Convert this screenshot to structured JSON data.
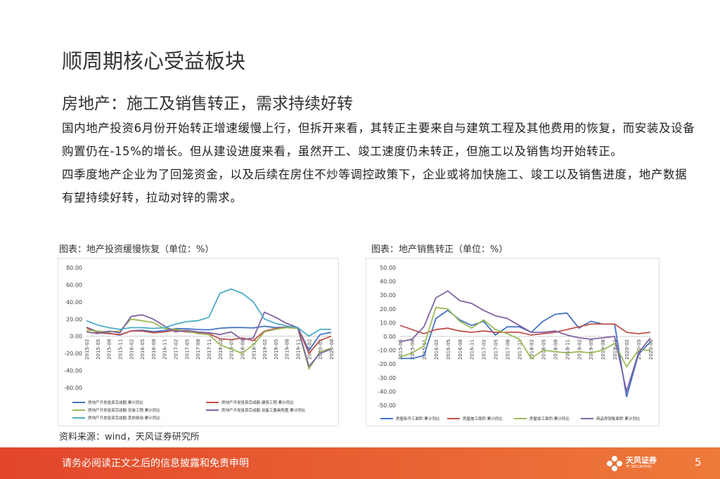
{
  "title": "顺周期核心受益板块",
  "subtitle": "房地产：施工及销售转正，需求持续好转",
  "paragraphs": [
    "国内地产投资6月份开始转正增速缓慢上行，但拆开来看，其转正主要来自与建筑工程及其他费用的恢复，而安装及设备购置仍在-15%的增长。但从建设进度来看，虽然开工、竣工速度仍未转正，但施工以及销售均开始转正。",
    "四季度地产企业为了回笼资金，以及后续在房住不炒等调控政策下，企业或将加快施工、竣工以及销售进度，地产数据有望持续好转，拉动对锌的需求。"
  ],
  "source": "资料来源：wind，天风证券研究所",
  "footer": "请务必阅读正文之后的信息披露和免责申明",
  "logo": {
    "name": "天风证券",
    "sub": "TF SECURITIES"
  },
  "page_number": "5",
  "chart_data": [
    {
      "type": "line",
      "title": "图表：地产投资缓慢恢复（单位：%）",
      "categories": [
        "2015-02",
        "2015-05",
        "2015-08",
        "2015-11",
        "2016-02",
        "2016-05",
        "2016-08",
        "2016-11",
        "2017-02",
        "2017-05",
        "2017-08",
        "2017-11",
        "2018-02",
        "2018-05",
        "2018-08",
        "2018-11",
        "2019-02",
        "2019-05",
        "2019-08",
        "2019-11",
        "2020-02",
        "2020-05",
        "2020-08"
      ],
      "ylim": [
        -60,
        80
      ],
      "yticks": [
        {
          "value": 80,
          "label": "80.00"
        },
        {
          "value": 60,
          "label": "60.00"
        },
        {
          "value": 40,
          "label": "40.00"
        },
        {
          "value": 20,
          "label": "20.00"
        },
        {
          "value": 0,
          "label": "0.00"
        },
        {
          "value": -20,
          "label": "-20.00"
        },
        {
          "value": -40,
          "label": "-40.00"
        },
        {
          "value": -60,
          "label": "-60.00"
        }
      ],
      "series": [
        {
          "name": "房地产开发投资完成额:累计同比",
          "color": "#4472c4",
          "values": [
            10.4,
            5.1,
            3.5,
            1.3,
            6.2,
            7.0,
            5.4,
            6.5,
            8.9,
            8.8,
            7.9,
            7.5,
            9.3,
            10.2,
            10.1,
            9.7,
            11.6,
            10.1,
            10.5,
            10.2,
            -16.3,
            1.9,
            4.6
          ]
        },
        {
          "name": "房地产开发投资完成额:建筑工程:累计同比",
          "color": "#c0504d",
          "values": [
            10,
            4,
            3,
            2,
            6,
            6,
            4,
            5,
            7,
            5,
            4,
            3,
            -3,
            -4,
            -2,
            -5,
            6,
            9,
            10,
            10,
            -20,
            -5,
            0
          ]
        },
        {
          "name": "房地产开发投资完成额:安装工程:累计同比",
          "color": "#9bbb59",
          "values": [
            7,
            6,
            5,
            6,
            20,
            18,
            16,
            9,
            8,
            6,
            3,
            2,
            -10,
            -15,
            -20,
            -10,
            5,
            8,
            10,
            9,
            -38,
            -18,
            -14
          ]
        },
        {
          "name": "房地产开发投资完成额:设备工器具购置:累计同比",
          "color": "#8064a2",
          "values": [
            5,
            3,
            6,
            4,
            23,
            25,
            20,
            12,
            5,
            7,
            5,
            4,
            2,
            5,
            -4,
            -2,
            28,
            22,
            15,
            10,
            -35,
            -20,
            -15
          ]
        },
        {
          "name": "房地产开发投资完成额:其他费用:累计同比",
          "color": "#4bacc6",
          "values": [
            18,
            13,
            10,
            8,
            10,
            10,
            9,
            10,
            14,
            17,
            18,
            22,
            50,
            55,
            50,
            40,
            20,
            15,
            12,
            10,
            0,
            8,
            8
          ]
        }
      ]
    },
    {
      "type": "line",
      "title": "图表：地产销售转正（单位：%）",
      "categories": [
        "2015-05",
        "2015-08",
        "2015-11",
        "2016-02",
        "2016-05",
        "2016-08",
        "2016-11",
        "2017-02",
        "2017-05",
        "2017-08",
        "2017-11",
        "2018-02",
        "2018-05",
        "2018-08",
        "2018-11",
        "2019-02",
        "2019-05",
        "2019-08",
        "2019-11",
        "2020-02",
        "2020-05",
        "2020-08"
      ],
      "ylim": [
        -50,
        50
      ],
      "yticks": [
        {
          "value": 50,
          "label": "50.00"
        },
        {
          "value": 40,
          "label": "40.00"
        },
        {
          "value": 30,
          "label": "30.00"
        },
        {
          "value": 20,
          "label": "20.00"
        },
        {
          "value": 10,
          "label": "10.00"
        },
        {
          "value": 0,
          "label": "0.00"
        },
        {
          "value": -10,
          "label": "-10.00"
        },
        {
          "value": -20,
          "label": "-20.00"
        },
        {
          "value": -30,
          "label": "-30.00"
        },
        {
          "value": -40,
          "label": "-40.00"
        },
        {
          "value": -50,
          "label": "-50.00"
        }
      ],
      "series": [
        {
          "name": "房屋新开工面积:累计同比",
          "color": "#4472c4",
          "values": [
            -16,
            -16,
            -14,
            13,
            19,
            12,
            8,
            11,
            1,
            7,
            7,
            3,
            11,
            16,
            17,
            6,
            11,
            9,
            9,
            -44,
            -13,
            -4
          ]
        },
        {
          "name": "房屋施工面积:累计同比",
          "color": "#c0504d",
          "values": [
            8,
            5,
            2,
            5,
            6,
            4,
            3,
            4,
            3,
            3,
            3,
            1,
            2,
            3,
            5,
            7,
            9,
            9,
            9,
            3,
            2,
            3
          ]
        },
        {
          "name": "房屋竣工面积:累计同比",
          "color": "#9bbb59",
          "values": [
            -15,
            -12,
            -7,
            21,
            20,
            11,
            6,
            12,
            5,
            2,
            -2,
            -16,
            -10,
            -11,
            -12,
            -11,
            -12,
            -10,
            -5,
            -22,
            -10,
            -10
          ]
        },
        {
          "name": "商品房销售面积:累计同比",
          "color": "#8064a2",
          "values": [
            -4,
            -2,
            7,
            28,
            33,
            26,
            24,
            19,
            15,
            13,
            8,
            3,
            3,
            4,
            1,
            -1,
            -2,
            -1,
            0,
            -40,
            -12,
            -1
          ]
        }
      ]
    }
  ]
}
